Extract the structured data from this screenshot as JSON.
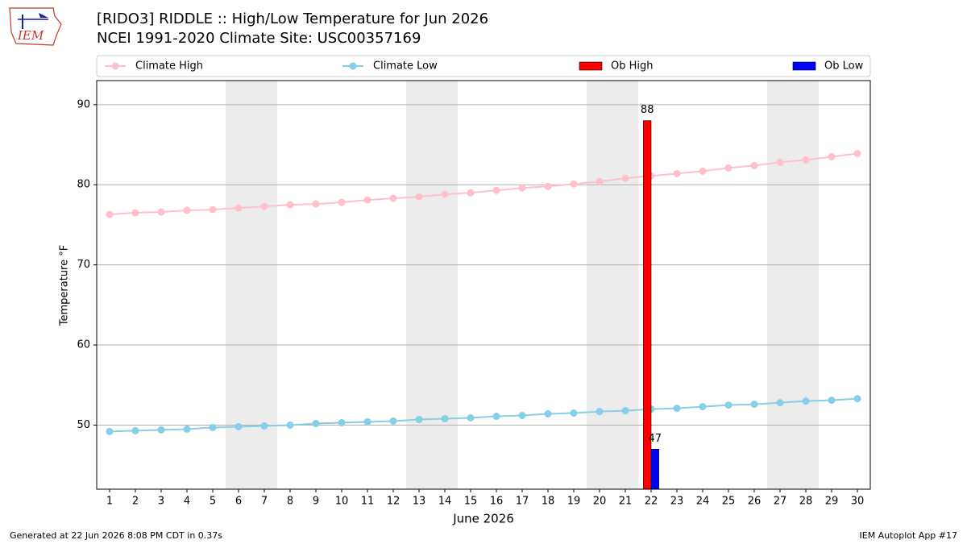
{
  "chart_data": {
    "type": "line",
    "title": "[RIDO3] RIDDLE :: High/Low Temperature for Jun 2026",
    "subtitle": "NCEI 1991-2020 Climate Site: USC00357169",
    "logo": "IEM",
    "xlabel": "June 2026",
    "ylabel": "Temperature °F",
    "footer_left": "Generated at 22 Jun 2026 8:08 PM CDT in 0.37s",
    "footer_right": "IEM Autoplot App #17",
    "x": [
      1,
      2,
      3,
      4,
      5,
      6,
      7,
      8,
      9,
      10,
      11,
      12,
      13,
      14,
      15,
      16,
      17,
      18,
      19,
      20,
      21,
      22,
      23,
      24,
      25,
      26,
      27,
      28,
      29,
      30
    ],
    "xlim": [
      0.5,
      30.5
    ],
    "xticks": [
      1,
      2,
      3,
      4,
      5,
      6,
      7,
      8,
      9,
      10,
      11,
      12,
      13,
      14,
      15,
      16,
      17,
      18,
      19,
      20,
      21,
      22,
      23,
      24,
      25,
      26,
      27,
      28,
      29,
      30
    ],
    "ylim": [
      42,
      93
    ],
    "yticks": [
      50,
      60,
      70,
      80,
      90
    ],
    "grid": true,
    "shaded_x_ranges": [
      [
        5.5,
        7.5
      ],
      [
        12.5,
        14.5
      ],
      [
        19.5,
        21.5
      ],
      [
        26.5,
        28.5
      ]
    ],
    "shade_color": "#ececec",
    "series": [
      {
        "name": "Climate High",
        "type": "line",
        "color": "#ffc0cb",
        "values": [
          76.3,
          76.5,
          76.6,
          76.8,
          76.9,
          77.1,
          77.3,
          77.5,
          77.6,
          77.8,
          78.1,
          78.3,
          78.5,
          78.8,
          79.0,
          79.3,
          79.6,
          79.8,
          80.1,
          80.4,
          80.8,
          81.1,
          81.4,
          81.7,
          82.1,
          82.4,
          82.8,
          83.1,
          83.5,
          83.9
        ]
      },
      {
        "name": "Climate Low",
        "type": "line",
        "color": "#87ceeb",
        "values": [
          49.2,
          49.3,
          49.4,
          49.5,
          49.7,
          49.8,
          49.9,
          50.0,
          50.2,
          50.3,
          50.4,
          50.5,
          50.7,
          50.8,
          50.9,
          51.1,
          51.2,
          51.4,
          51.5,
          51.7,
          51.8,
          52.0,
          52.1,
          52.3,
          52.5,
          52.6,
          52.8,
          53.0,
          53.1,
          53.3
        ]
      },
      {
        "name": "Ob High",
        "type": "bar",
        "color": "#ff0000",
        "data_labels": true,
        "values": [
          null,
          null,
          null,
          null,
          null,
          null,
          null,
          null,
          null,
          null,
          null,
          null,
          null,
          null,
          null,
          null,
          null,
          null,
          null,
          null,
          null,
          88,
          null,
          null,
          null,
          null,
          null,
          null,
          null,
          null
        ]
      },
      {
        "name": "Ob Low",
        "type": "bar",
        "color": "#0000ff",
        "data_labels": true,
        "values": [
          null,
          null,
          null,
          null,
          null,
          null,
          null,
          null,
          null,
          null,
          null,
          null,
          null,
          null,
          null,
          null,
          null,
          null,
          null,
          null,
          null,
          47,
          null,
          null,
          null,
          null,
          null,
          null,
          null,
          null
        ]
      }
    ]
  }
}
